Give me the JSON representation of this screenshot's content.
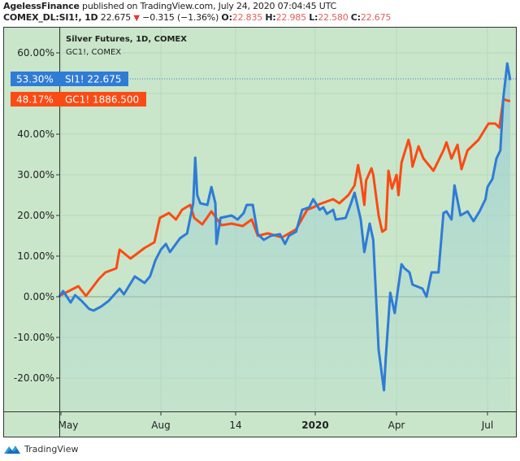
{
  "header": {
    "author": "AgelessFinance",
    "published": "published on TradingView.com, July 24, 2020 07:04:45 UTC",
    "symbol": "COMEX_DL:SI1!, 1D",
    "last": "22.675",
    "change": "−0.315 (−1.36%)",
    "o_label": "O:",
    "o": "22.835",
    "h_label": "H:",
    "h": "22.985",
    "l_label": "L:",
    "l": "22.580",
    "c_label": "C:",
    "c": "22.675"
  },
  "legend": {
    "main": "Silver Futures, 1D, COMEX",
    "compare": "GC1!, COMEX"
  },
  "badges": {
    "silver_pct": "53.30%",
    "silver_label": "SI1! 22.675",
    "gold_pct": "48.17%",
    "gold_label": "GC1! 1886.500"
  },
  "footer": {
    "brand": "TradingView"
  },
  "colors": {
    "silver": "#2f7bd6",
    "gold": "#fc4a14",
    "background": "#c9e6ca"
  },
  "chart_data": {
    "type": "line",
    "title": "Silver Futures, 1D, COMEX",
    "y_ticks": [
      "60.00%",
      "50.00%",
      "40.00%",
      "30.00%",
      "20.00%",
      "10.00%",
      "0.00%",
      "-10.00%",
      "-20.00%"
    ],
    "x_ticks": [
      "May",
      "Aug",
      "14",
      "2020",
      "Apr",
      "Jul"
    ],
    "ylim": [
      -27,
      66
    ],
    "grid": true,
    "series": [
      {
        "name": "SI1!",
        "color": "#2f7bd6",
        "area": true,
        "points": [
          [
            "2019-04-29",
            0
          ],
          [
            "2019-05-03",
            1.4
          ],
          [
            "2019-05-10",
            -1.4
          ],
          [
            "2019-05-14",
            0.4
          ],
          [
            "2019-05-20",
            -1
          ],
          [
            "2019-05-27",
            -3
          ],
          [
            "2019-05-31",
            -3.4
          ],
          [
            "2019-06-07",
            -2.4
          ],
          [
            "2019-06-14",
            -1
          ],
          [
            "2019-06-24",
            2
          ],
          [
            "2019-06-28",
            0.6
          ],
          [
            "2019-07-08",
            5
          ],
          [
            "2019-07-17",
            3.4
          ],
          [
            "2019-07-22",
            5
          ],
          [
            "2019-07-27",
            9
          ],
          [
            "2019-08-01",
            11.6
          ],
          [
            "2019-08-06",
            13
          ],
          [
            "2019-08-10",
            11
          ],
          [
            "2019-08-20",
            14.4
          ],
          [
            "2019-08-27",
            15.6
          ],
          [
            "2019-08-30",
            19.4
          ],
          [
            "2019-09-02",
            23
          ],
          [
            "2019-09-04",
            34.2
          ],
          [
            "2019-09-06",
            25
          ],
          [
            "2019-09-09",
            23
          ],
          [
            "2019-09-16",
            22.6
          ],
          [
            "2019-09-20",
            27
          ],
          [
            "2019-09-24",
            23
          ],
          [
            "2019-09-25",
            13
          ],
          [
            "2019-09-29",
            19.4
          ],
          [
            "2019-10-10",
            20
          ],
          [
            "2019-10-16",
            19
          ],
          [
            "2019-10-22",
            20.6
          ],
          [
            "2019-10-25",
            22.6
          ],
          [
            "2019-10-31",
            22.6
          ],
          [
            "2019-11-05",
            15.4
          ],
          [
            "2019-11-11",
            14
          ],
          [
            "2019-11-18",
            15
          ],
          [
            "2019-11-27",
            15.4
          ],
          [
            "2019-12-02",
            13
          ],
          [
            "2019-12-06",
            15
          ],
          [
            "2019-12-13",
            16
          ],
          [
            "2019-12-19",
            21.4
          ],
          [
            "2019-12-26",
            22
          ],
          [
            "2019-12-30",
            24
          ],
          [
            "2020-01-06",
            21.4
          ],
          [
            "2020-01-10",
            22
          ],
          [
            "2020-01-14",
            20.4
          ],
          [
            "2020-01-21",
            21.4
          ],
          [
            "2020-01-24",
            19
          ],
          [
            "2020-02-04",
            19.4
          ],
          [
            "2020-02-10",
            23
          ],
          [
            "2020-02-14",
            25.6
          ],
          [
            "2020-02-21",
            19
          ],
          [
            "2020-02-25",
            11
          ],
          [
            "2020-03-02",
            18
          ],
          [
            "2020-03-06",
            14
          ],
          [
            "2020-03-12",
            -13
          ],
          [
            "2020-03-18",
            -23
          ],
          [
            "2020-03-20",
            -15
          ],
          [
            "2020-03-25",
            1
          ],
          [
            "2020-03-30",
            -4
          ],
          [
            "2020-04-02",
            1
          ],
          [
            "2020-04-06",
            8
          ],
          [
            "2020-04-09",
            7
          ],
          [
            "2020-04-14",
            6
          ],
          [
            "2020-04-17",
            3
          ],
          [
            "2020-04-27",
            2
          ],
          [
            "2020-05-01",
            0
          ],
          [
            "2020-05-06",
            6
          ],
          [
            "2020-05-13",
            6
          ],
          [
            "2020-05-18",
            20.6
          ],
          [
            "2020-05-21",
            21
          ],
          [
            "2020-05-26",
            19
          ],
          [
            "2020-05-29",
            27.4
          ],
          [
            "2020-06-04",
            20
          ],
          [
            "2020-06-11",
            21
          ],
          [
            "2020-06-17",
            18.6
          ],
          [
            "2020-06-23",
            21
          ],
          [
            "2020-06-29",
            24
          ],
          [
            "2020-07-01",
            27
          ],
          [
            "2020-07-06",
            29
          ],
          [
            "2020-07-10",
            34
          ],
          [
            "2020-07-14",
            36
          ],
          [
            "2020-07-17",
            49
          ],
          [
            "2020-07-21",
            57.4
          ],
          [
            "2020-07-24",
            53.3
          ]
        ]
      },
      {
        "name": "GC1!",
        "color": "#fc4a14",
        "area": false,
        "points": [
          [
            "2019-05-01",
            0.4
          ],
          [
            "2019-05-17",
            2.6
          ],
          [
            "2019-05-24",
            0.2
          ],
          [
            "2019-06-05",
            4.4
          ],
          [
            "2019-06-11",
            6
          ],
          [
            "2019-06-21",
            7
          ],
          [
            "2019-06-24",
            11.6
          ],
          [
            "2019-07-04",
            9.4
          ],
          [
            "2019-07-17",
            12
          ],
          [
            "2019-07-26",
            13.4
          ],
          [
            "2019-07-31",
            19.4
          ],
          [
            "2019-08-09",
            20.6
          ],
          [
            "2019-08-16",
            19
          ],
          [
            "2019-08-22",
            21.4
          ],
          [
            "2019-08-30",
            22.6
          ],
          [
            "2019-09-03",
            19.4
          ],
          [
            "2019-09-11",
            17.8
          ],
          [
            "2019-09-20",
            21
          ],
          [
            "2019-09-30",
            17.6
          ],
          [
            "2019-10-10",
            18
          ],
          [
            "2019-10-21",
            17.4
          ],
          [
            "2019-10-30",
            19
          ],
          [
            "2019-11-05",
            15
          ],
          [
            "2019-11-15",
            15.6
          ],
          [
            "2019-11-29",
            14.6
          ],
          [
            "2019-12-13",
            16.6
          ],
          [
            "2019-12-24",
            21.4
          ],
          [
            "2019-12-30",
            22
          ],
          [
            "2020-01-06",
            22.8
          ],
          [
            "2020-01-21",
            24
          ],
          [
            "2020-01-28",
            23
          ],
          [
            "2020-02-07",
            25
          ],
          [
            "2020-02-14",
            27.4
          ],
          [
            "2020-02-18",
            32.4
          ],
          [
            "2020-02-21",
            29
          ],
          [
            "2020-02-25",
            22.6
          ],
          [
            "2020-02-27",
            28.6
          ],
          [
            "2020-03-04",
            31.6
          ],
          [
            "2020-03-06",
            30
          ],
          [
            "2020-03-12",
            20
          ],
          [
            "2020-03-16",
            16
          ],
          [
            "2020-03-20",
            16.6
          ],
          [
            "2020-03-23",
            31
          ],
          [
            "2020-03-27",
            26.6
          ],
          [
            "2020-04-01",
            30
          ],
          [
            "2020-04-03",
            25
          ],
          [
            "2020-04-06",
            33
          ],
          [
            "2020-04-13",
            38.6
          ],
          [
            "2020-04-15",
            36.6
          ],
          [
            "2020-04-17",
            32
          ],
          [
            "2020-04-23",
            37
          ],
          [
            "2020-04-28",
            34
          ],
          [
            "2020-05-08",
            31
          ],
          [
            "2020-05-18",
            36
          ],
          [
            "2020-05-21",
            38
          ],
          [
            "2020-05-26",
            34
          ],
          [
            "2020-06-01",
            37.4
          ],
          [
            "2020-06-05",
            31.4
          ],
          [
            "2020-06-11",
            36
          ],
          [
            "2020-06-22",
            38.6
          ],
          [
            "2020-07-02",
            42.6
          ],
          [
            "2020-07-09",
            42.6
          ],
          [
            "2020-07-13",
            41.6
          ],
          [
            "2020-07-17",
            48.6
          ],
          [
            "2020-07-22",
            48.2
          ],
          [
            "2020-07-24",
            48.17
          ]
        ]
      }
    ]
  }
}
